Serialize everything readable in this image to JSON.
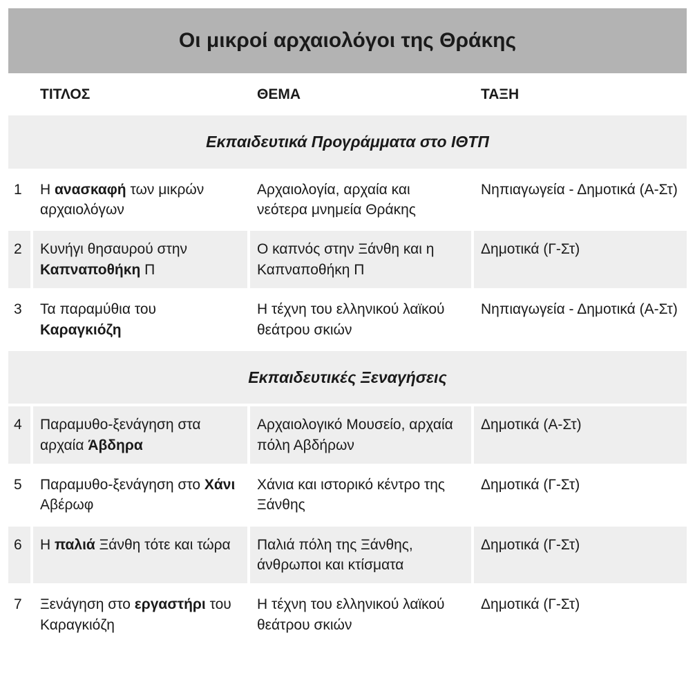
{
  "title": "Οι μικροί αρχαιολόγοι της Θράκης",
  "columns": {
    "num": "",
    "title": "ΤΙΤΛΟΣ",
    "theme": "ΘΕΜΑ",
    "class": "ΤΑΞΗ"
  },
  "column_widths": {
    "num": 32,
    "title": 310,
    "theme": 320
  },
  "colors": {
    "title_bg": "#b3b3b3",
    "section_bg": "#eeeeee",
    "row_odd_bg": "#ffffff",
    "row_even_bg": "#eeeeee",
    "text": "#1a1a1a",
    "border_spacing": 4
  },
  "fonts": {
    "title_size_pt": 22,
    "header_size_pt": 16,
    "section_size_pt": 17,
    "body_size_pt": 16,
    "family": "Arial"
  },
  "sections": [
    {
      "heading": "Εκπαιδευτικά Προγράμματα στο ΙΘΤΠ",
      "rows": [
        {
          "num": "1",
          "title_pre": "Η ",
          "title_bold": "ανασκαφή",
          "title_post": " των μικρών αρχαιολόγων",
          "theme": "Αρχαιολογία, αρχαία και νεότερα μνημεία Θράκης",
          "class": "Νηπιαγωγεία - Δημοτικά (Α-Στ)"
        },
        {
          "num": "2",
          "title_pre": "Κυνήγι θησαυρού στην ",
          "title_bold": "Καπναποθήκη",
          "title_post": " Π",
          "theme": "Ο καπνός στην Ξάνθη και η Καπναποθήκη Π",
          "class": "Δημοτικά (Γ-Στ)"
        },
        {
          "num": "3",
          "title_pre": "Τα παραμύθια του ",
          "title_bold": "Καραγκιόζη",
          "title_post": "",
          "theme": "Η τέχνη του ελληνικού λαϊκού θεάτρου σκιών",
          "class": "Νηπιαγωγεία - Δημοτικά (Α-Στ)"
        }
      ]
    },
    {
      "heading": "Εκπαιδευτικές Ξεναγήσεις",
      "rows": [
        {
          "num": "4",
          "title_pre": "Παραμυθο-ξενάγηση στα αρχαία ",
          "title_bold": "Άβδηρα",
          "title_post": "",
          "theme": "Αρχαιολογικό Μουσείο, αρχαία πόλη Αβδήρων",
          "class": "Δημοτικά (Α-Στ)"
        },
        {
          "num": "5",
          "title_pre": "Παραμυθο-ξενάγηση στο ",
          "title_bold": "Χάνι",
          "title_post": " Αβέρωφ",
          "theme": "Χάνια και ιστορικό κέντρο της Ξάνθης",
          "class": "Δημοτικά (Γ-Στ)"
        },
        {
          "num": "6",
          "title_pre": "Η ",
          "title_bold": "παλιά",
          "title_post": " Ξάνθη τότε και τώρα",
          "theme": "Παλιά πόλη της Ξάνθης, άνθρωποι και κτίσματα",
          "class": "Δημοτικά (Γ-Στ)"
        },
        {
          "num": "7",
          "title_pre": "Ξενάγηση στο ",
          "title_bold": "εργαστήρι",
          "title_post": " του Καραγκιόζη",
          "theme": "Η τέχνη του ελληνικού λαϊκού θεάτρου σκιών",
          "class": "Δημοτικά (Γ-Στ)"
        }
      ]
    }
  ]
}
